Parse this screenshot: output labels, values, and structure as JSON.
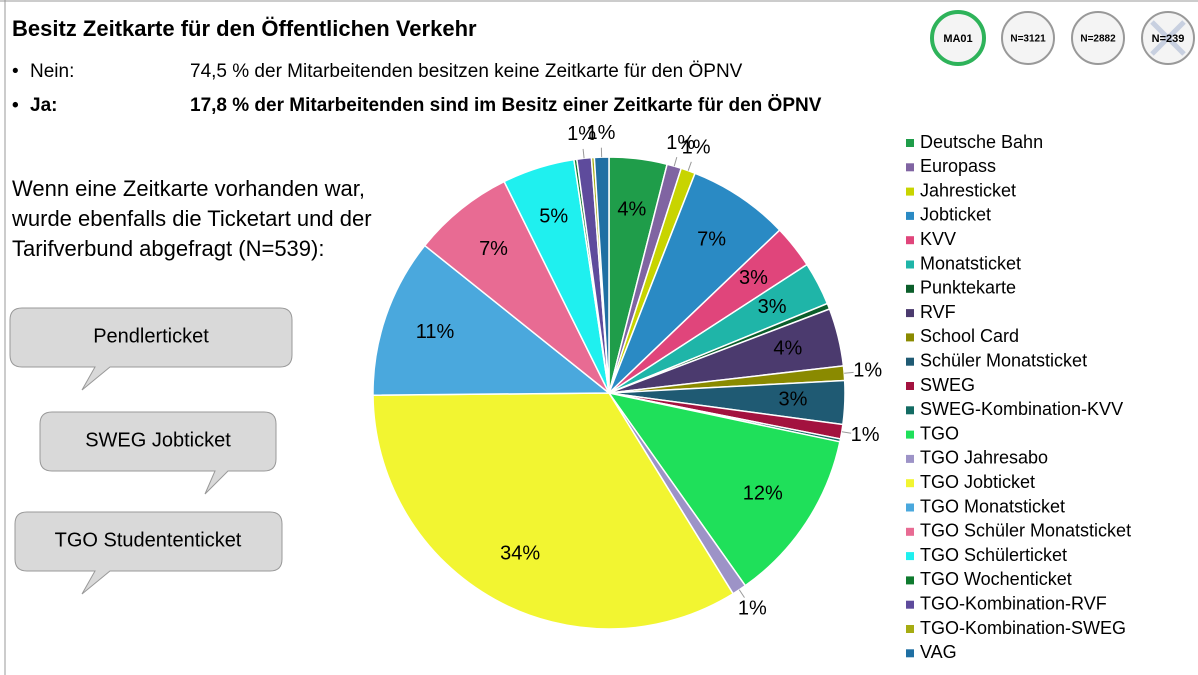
{
  "header": {
    "title": "Besitz Zeitkarte für den Öffentlichen Verkehr"
  },
  "bullets": [
    {
      "label": "Nein:",
      "text": "74,5 % der Mitarbeitenden besitzen keine Zeitkarte für den ÖPNV"
    },
    {
      "label": "Ja:",
      "text": "17,8 % der Mitarbeitenden sind im Besitz einer Zeitkarte für den ÖPNV"
    }
  ],
  "note": [
    "Wenn eine Zeitkarte vorhanden war,",
    "wurde ebenfalls die Ticketart und der",
    "Tarifverbund abgefragt (N=539):"
  ],
  "callouts": [
    "Pendlerticket",
    "SWEG Jobticket",
    "TGO Studententicket"
  ],
  "badges": [
    "MA01",
    "N=3121",
    "N=2882",
    "N=239"
  ],
  "chart_data": {
    "type": "pie",
    "categories": [
      "Deutsche Bahn",
      "Europass",
      "Jahresticket",
      "Jobticket",
      "KVV",
      "Monatsticket",
      "Punktekarte",
      "RVF",
      "School Card",
      "Schüler Monatsticket",
      "SWEG",
      "SWEG-Kombination-KVV",
      "TGO",
      "TGO Jahresabo",
      "TGO Jobticket",
      "TGO Monatsticket",
      "TGO Schüler Monatsticket",
      "TGO Schülerticket",
      "TGO Wochenticket",
      "TGO-Kombination-RVF",
      "TGO-Kombination-SWEG",
      "VAG"
    ],
    "values": [
      4,
      1,
      1,
      7,
      3,
      3,
      0.4,
      4,
      1,
      3,
      1,
      0.2,
      12,
      1,
      34,
      11,
      7,
      5,
      0.2,
      1,
      0.2,
      1
    ],
    "value_labels": [
      "4%",
      "1%",
      "1%",
      "7%",
      "3%",
      "3%",
      null,
      "4%",
      "1%",
      "3%",
      "1%",
      null,
      "12%",
      "1%",
      "34%",
      "11%",
      "7%",
      "5%",
      null,
      "1%",
      null,
      "1%"
    ],
    "colors": [
      "#1f9d4a",
      "#8064a2",
      "#c8d400",
      "#2a8ac4",
      "#e0457b",
      "#1fb5a8",
      "#0b5e2a",
      "#4b3a6e",
      "#8a8a00",
      "#1f5a73",
      "#a3123f",
      "#136b63",
      "#1fe05a",
      "#9d93c7",
      "#f2f531",
      "#4aa8dd",
      "#e86b93",
      "#1ff0ef",
      "#0e7a2e",
      "#5e4b9c",
      "#a6ac12",
      "#1f6fa3"
    ]
  }
}
